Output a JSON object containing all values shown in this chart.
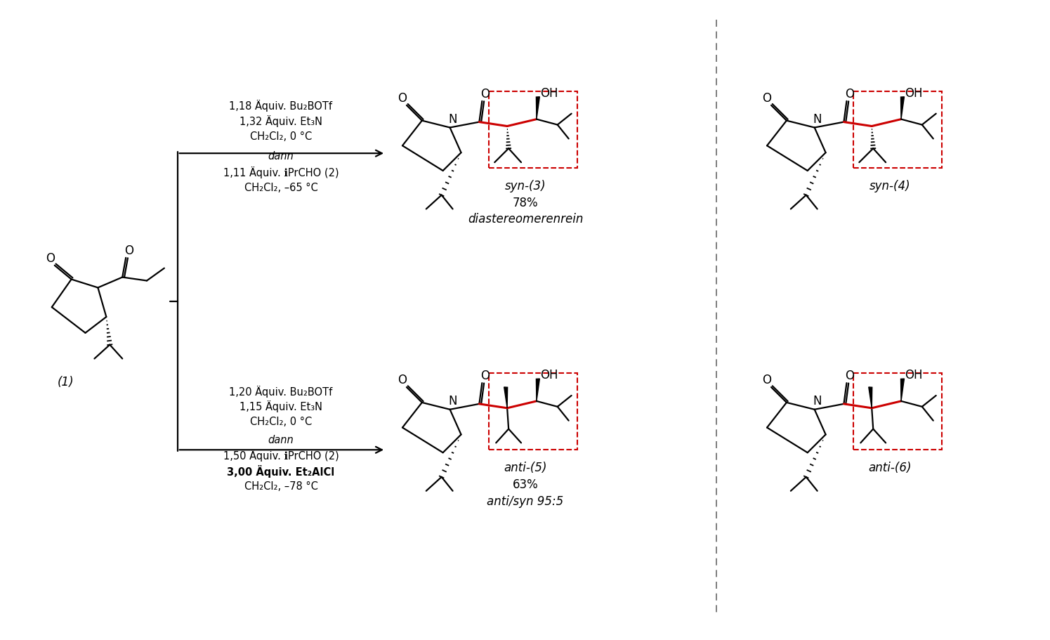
{
  "bg_color": "#ffffff",
  "fig_width": 14.95,
  "fig_height": 9.12,
  "dpi": 100,
  "bond_color": "#000000",
  "red_bond_color": "#cc0000",
  "dashed_box_color": "#cc0000",
  "sep_line_color": "#666666",
  "reagents_top_line1": "1,18 Äquiv. Bu₂BOTf",
  "reagents_top_line2": "1,32 Äquiv. Et₃N",
  "reagents_top_line3": "CH₂Cl₂, 0 °C",
  "reagents_top_dann": "dann",
  "reagents_top_line5": "1,11 Äquiv. ℹPrCHO (2)",
  "reagents_top_line6": "CH₂Cl₂, –65 °C",
  "reagents_bot_line1": "1,20 Äquiv. Bu₂BOTf",
  "reagents_bot_line2": "1,15 Äquiv. Et₃N",
  "reagents_bot_line3": "CH₂Cl₂, 0 °C",
  "reagents_bot_dann": "dann",
  "reagents_bot_line5": "1,50 Äquiv. ℹPrCHO (2)",
  "reagents_bot_line6": "3,00 Äquiv. Et₂AlCl",
  "reagents_bot_line7": "CH₂Cl₂, –78 °C",
  "label1": "(1)",
  "label_syn3": "syn-(3)",
  "label_syn3_yield": "78%",
  "label_syn3_dr": "diastereomerenrein",
  "label_syn4": "syn-(4)",
  "label_anti5": "anti-(5)",
  "label_anti5_yield": "63%",
  "label_anti5_dr": "anti/syn 95:5",
  "label_anti6": "anti-(6)"
}
